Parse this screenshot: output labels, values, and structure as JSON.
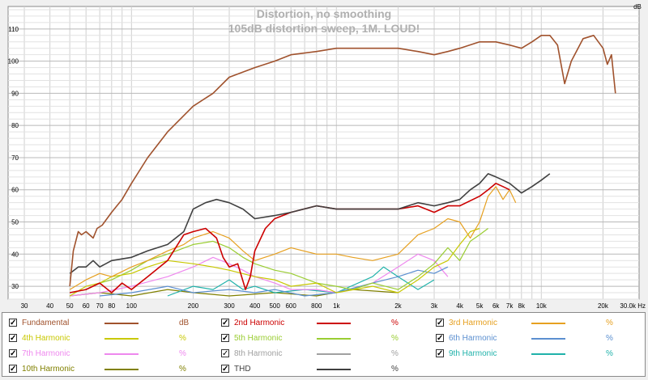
{
  "chart_data": {
    "type": "line",
    "title": "Distortion, no smoothing",
    "subtitle": "105dB distortion sweep, 1M.  LOUD!",
    "ylabel": "dB",
    "xlabel": "Hz",
    "xscale": "log",
    "xlim": [
      25,
      30000
    ],
    "ylim": [
      26,
      117
    ],
    "x_ticks": [
      {
        "v": 30,
        "label": "30"
      },
      {
        "v": 40,
        "label": "40"
      },
      {
        "v": 50,
        "label": "50"
      },
      {
        "v": 60,
        "label": "60"
      },
      {
        "v": 70,
        "label": "70"
      },
      {
        "v": 80,
        "label": "80"
      },
      {
        "v": 100,
        "label": "100"
      },
      {
        "v": 200,
        "label": "200"
      },
      {
        "v": 300,
        "label": "300"
      },
      {
        "v": 400,
        "label": "400"
      },
      {
        "v": 500,
        "label": "500"
      },
      {
        "v": 600,
        "label": "600"
      },
      {
        "v": 800,
        "label": "800"
      },
      {
        "v": 1000,
        "label": "1k"
      },
      {
        "v": 2000,
        "label": "2k"
      },
      {
        "v": 3000,
        "label": "3k"
      },
      {
        "v": 4000,
        "label": "4k"
      },
      {
        "v": 5000,
        "label": "5k"
      },
      {
        "v": 6000,
        "label": "6k"
      },
      {
        "v": 7000,
        "label": "7k"
      },
      {
        "v": 8000,
        "label": "8k"
      },
      {
        "v": 10000,
        "label": "10k"
      },
      {
        "v": 20000,
        "label": "20k"
      },
      {
        "v": 30000,
        "label": "30.0k Hz"
      }
    ],
    "y_ticks": [
      30,
      40,
      50,
      60,
      70,
      80,
      90,
      100,
      110
    ],
    "grid": true,
    "legend_position": "bottom",
    "series": [
      {
        "name": "Fundamental",
        "unit": "dB",
        "color": "#a0522d",
        "checked": true,
        "points": [
          [
            50,
            30
          ],
          [
            52,
            41
          ],
          [
            55,
            47
          ],
          [
            57,
            46
          ],
          [
            60,
            47
          ],
          [
            65,
            45
          ],
          [
            68,
            48
          ],
          [
            72,
            49
          ],
          [
            80,
            53
          ],
          [
            90,
            57
          ],
          [
            100,
            62
          ],
          [
            120,
            70
          ],
          [
            150,
            78
          ],
          [
            200,
            86
          ],
          [
            250,
            90
          ],
          [
            300,
            95
          ],
          [
            400,
            98
          ],
          [
            500,
            100
          ],
          [
            600,
            102
          ],
          [
            800,
            103
          ],
          [
            1000,
            104
          ],
          [
            1500,
            104
          ],
          [
            2000,
            104
          ],
          [
            2500,
            103
          ],
          [
            3000,
            102
          ],
          [
            3500,
            103
          ],
          [
            4000,
            104
          ],
          [
            5000,
            106
          ],
          [
            6000,
            106
          ],
          [
            7000,
            105
          ],
          [
            8000,
            104
          ],
          [
            9000,
            106
          ],
          [
            10000,
            108
          ],
          [
            11000,
            108
          ],
          [
            12000,
            105
          ],
          [
            13000,
            93
          ],
          [
            14000,
            100
          ],
          [
            16000,
            107
          ],
          [
            18000,
            108
          ],
          [
            20000,
            104
          ],
          [
            21000,
            99
          ],
          [
            22000,
            102
          ],
          [
            23000,
            90
          ]
        ]
      },
      {
        "name": "2nd Harmonic",
        "unit": "%",
        "color": "#cc0000",
        "checked": true,
        "points": [
          [
            50,
            28
          ],
          [
            60,
            29
          ],
          [
            70,
            31
          ],
          [
            80,
            28
          ],
          [
            90,
            31
          ],
          [
            100,
            29
          ],
          [
            120,
            33
          ],
          [
            150,
            38
          ],
          [
            180,
            46
          ],
          [
            200,
            47
          ],
          [
            230,
            48
          ],
          [
            260,
            45
          ],
          [
            280,
            39
          ],
          [
            300,
            36
          ],
          [
            330,
            37
          ],
          [
            360,
            29
          ],
          [
            380,
            33
          ],
          [
            400,
            41
          ],
          [
            450,
            48
          ],
          [
            500,
            51
          ],
          [
            600,
            53
          ],
          [
            800,
            55
          ],
          [
            1000,
            54
          ],
          [
            1500,
            54
          ],
          [
            2000,
            54
          ],
          [
            2500,
            55
          ],
          [
            3000,
            53
          ],
          [
            3500,
            55
          ],
          [
            4000,
            55
          ],
          [
            5000,
            58
          ],
          [
            5500,
            60
          ],
          [
            6000,
            62
          ],
          [
            6500,
            61
          ],
          [
            7000,
            60
          ]
        ]
      },
      {
        "name": "3rd Harmonic",
        "unit": "%",
        "color": "#e6a020",
        "checked": true,
        "points": [
          [
            50,
            29
          ],
          [
            60,
            32
          ],
          [
            70,
            34
          ],
          [
            80,
            33
          ],
          [
            100,
            36
          ],
          [
            120,
            38
          ],
          [
            150,
            41
          ],
          [
            180,
            43
          ],
          [
            200,
            45
          ],
          [
            250,
            47
          ],
          [
            300,
            45
          ],
          [
            350,
            41
          ],
          [
            400,
            38
          ],
          [
            500,
            40
          ],
          [
            600,
            42
          ],
          [
            800,
            40
          ],
          [
            1000,
            40
          ],
          [
            1200,
            39
          ],
          [
            1500,
            38
          ],
          [
            2000,
            40
          ],
          [
            2500,
            46
          ],
          [
            3000,
            48
          ],
          [
            3500,
            51
          ],
          [
            4000,
            50
          ],
          [
            4500,
            45
          ],
          [
            5000,
            50
          ],
          [
            5500,
            58
          ],
          [
            6000,
            61
          ],
          [
            6500,
            57
          ],
          [
            7000,
            60
          ],
          [
            7500,
            56
          ]
        ]
      },
      {
        "name": "4th Harmonic",
        "unit": "%",
        "color": "#c8c800",
        "checked": true,
        "points": [
          [
            50,
            27
          ],
          [
            60,
            30
          ],
          [
            70,
            31
          ],
          [
            80,
            33
          ],
          [
            100,
            34
          ],
          [
            120,
            36
          ],
          [
            150,
            38
          ],
          [
            200,
            37
          ],
          [
            250,
            36
          ],
          [
            300,
            35
          ],
          [
            400,
            33
          ],
          [
            500,
            32
          ],
          [
            600,
            30
          ],
          [
            800,
            31
          ],
          [
            1000,
            28
          ],
          [
            1500,
            30
          ],
          [
            2000,
            28
          ],
          [
            2500,
            32
          ],
          [
            3000,
            36
          ],
          [
            3500,
            38
          ],
          [
            4000,
            43
          ],
          [
            4500,
            47
          ],
          [
            5000,
            48
          ]
        ]
      },
      {
        "name": "5th Harmonic",
        "unit": "%",
        "color": "#9acd32",
        "checked": true,
        "points": [
          [
            50,
            28
          ],
          [
            60,
            29
          ],
          [
            70,
            31
          ],
          [
            80,
            32
          ],
          [
            100,
            35
          ],
          [
            120,
            38
          ],
          [
            150,
            40
          ],
          [
            200,
            43
          ],
          [
            250,
            44
          ],
          [
            300,
            42
          ],
          [
            350,
            39
          ],
          [
            400,
            37
          ],
          [
            500,
            35
          ],
          [
            600,
            34
          ],
          [
            800,
            31
          ],
          [
            1000,
            30
          ],
          [
            1200,
            29
          ],
          [
            1500,
            31
          ],
          [
            2000,
            29
          ],
          [
            2500,
            33
          ],
          [
            3000,
            37
          ],
          [
            3500,
            42
          ],
          [
            4000,
            38
          ],
          [
            4500,
            44
          ],
          [
            5000,
            46
          ],
          [
            5500,
            48
          ]
        ]
      },
      {
        "name": "6th Harmonic",
        "unit": "%",
        "color": "#5b8fd0",
        "checked": true,
        "points": [
          [
            70,
            27
          ],
          [
            100,
            28
          ],
          [
            150,
            30
          ],
          [
            200,
            28
          ],
          [
            300,
            29
          ],
          [
            400,
            28
          ],
          [
            500,
            29
          ],
          [
            700,
            27
          ],
          [
            1000,
            28
          ],
          [
            1500,
            31
          ],
          [
            2000,
            33
          ],
          [
            2500,
            35
          ],
          [
            3000,
            34
          ],
          [
            3500,
            36
          ]
        ]
      },
      {
        "name": "7th Harmonic",
        "unit": "%",
        "color": "#ee88ee",
        "checked": true,
        "points": [
          [
            50,
            27
          ],
          [
            70,
            28
          ],
          [
            100,
            30
          ],
          [
            150,
            33
          ],
          [
            200,
            36
          ],
          [
            250,
            39
          ],
          [
            300,
            37
          ],
          [
            350,
            35
          ],
          [
            400,
            33
          ],
          [
            500,
            31
          ],
          [
            600,
            29
          ],
          [
            800,
            29
          ],
          [
            1000,
            28
          ],
          [
            1500,
            31
          ],
          [
            2000,
            36
          ],
          [
            2500,
            40
          ],
          [
            3000,
            38
          ],
          [
            3500,
            33
          ]
        ]
      },
      {
        "name": "8th Harmonic",
        "unit": "%",
        "color": "#a0a0a0",
        "checked": false,
        "points": []
      },
      {
        "name": "9th Harmonic",
        "unit": "%",
        "color": "#20b2aa",
        "checked": true,
        "points": [
          [
            150,
            27
          ],
          [
            200,
            30
          ],
          [
            250,
            29
          ],
          [
            300,
            32
          ],
          [
            350,
            29
          ],
          [
            400,
            30
          ],
          [
            500,
            28
          ],
          [
            700,
            29
          ],
          [
            1000,
            28
          ],
          [
            1500,
            33
          ],
          [
            1700,
            36
          ],
          [
            2000,
            33
          ],
          [
            2500,
            29
          ],
          [
            3000,
            32
          ]
        ]
      },
      {
        "name": "10th Harmonic",
        "unit": "%",
        "color": "#808000",
        "checked": true,
        "points": [
          [
            50,
            27
          ],
          [
            70,
            28
          ],
          [
            100,
            27
          ],
          [
            150,
            29
          ],
          [
            200,
            28
          ],
          [
            300,
            27
          ],
          [
            500,
            28
          ],
          [
            800,
            27
          ],
          [
            1200,
            29
          ],
          [
            2000,
            28
          ]
        ]
      },
      {
        "name": "THD",
        "unit": "%",
        "color": "#404040",
        "checked": true,
        "points": [
          [
            50,
            34
          ],
          [
            55,
            36
          ],
          [
            60,
            36
          ],
          [
            65,
            38
          ],
          [
            70,
            36
          ],
          [
            80,
            38
          ],
          [
            100,
            39
          ],
          [
            120,
            41
          ],
          [
            150,
            43
          ],
          [
            180,
            47
          ],
          [
            200,
            54
          ],
          [
            230,
            56
          ],
          [
            260,
            57
          ],
          [
            300,
            56
          ],
          [
            350,
            54
          ],
          [
            400,
            51
          ],
          [
            500,
            52
          ],
          [
            600,
            53
          ],
          [
            800,
            55
          ],
          [
            1000,
            54
          ],
          [
            1500,
            54
          ],
          [
            2000,
            54
          ],
          [
            2500,
            56
          ],
          [
            3000,
            55
          ],
          [
            3500,
            56
          ],
          [
            4000,
            57
          ],
          [
            4500,
            60
          ],
          [
            5000,
            62
          ],
          [
            5500,
            65
          ],
          [
            6000,
            64
          ],
          [
            6500,
            63
          ],
          [
            7000,
            62
          ],
          [
            8000,
            59
          ],
          [
            9000,
            61
          ],
          [
            10000,
            63
          ],
          [
            11000,
            65
          ]
        ]
      }
    ]
  }
}
